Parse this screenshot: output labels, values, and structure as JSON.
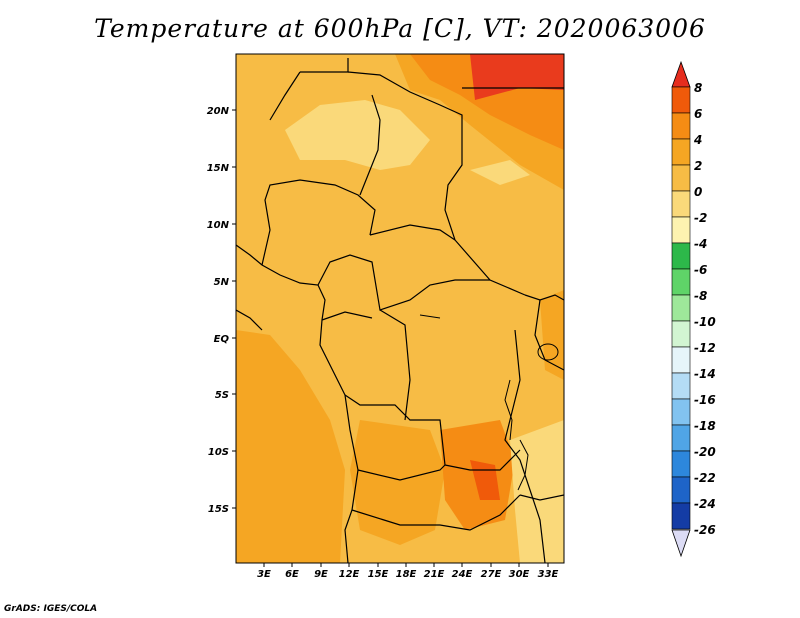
{
  "title": "Temperature at 600hPa [C], VT: 2020063006",
  "credit": "GrADS: IGES/COLA",
  "lat_labels": [
    "20N",
    "15N",
    "10N",
    "5N",
    "EQ",
    "5S",
    "10S",
    "15S"
  ],
  "lon_labels": [
    "3E",
    "6E",
    "9E",
    "12E",
    "15E",
    "18E",
    "21E",
    "24E",
    "27E",
    "30E",
    "33E"
  ],
  "colorbar": {
    "labels": [
      "8",
      "6",
      "4",
      "2",
      "0",
      "-2",
      "-4",
      "-6",
      "-8",
      "-10",
      "-12",
      "-14",
      "-16",
      "-18",
      "-20",
      "-22",
      "-24",
      "-26"
    ],
    "colors": [
      "#e62d1e",
      "#f05a0a",
      "#f58c14",
      "#f5a623",
      "#f7bc45",
      "#fad97a",
      "#fdf3b0",
      "#2db84a",
      "#5fd468",
      "#9ee89a",
      "#d2f5d2",
      "#e6f5fa",
      "#b4dcf5",
      "#82c3f0",
      "#50a5e6",
      "#2d87dc",
      "#1e64c8",
      "#143ca5",
      "#0a1e78",
      "#dcdcf5"
    ]
  },
  "chart_data": {
    "type": "heatmap",
    "variable": "Temperature at 600hPa",
    "units": "C",
    "valid_time": "2020063006",
    "lon_range": [
      0,
      34.5
    ],
    "lat_range": [
      -20,
      24.5
    ],
    "value_range": [
      -26,
      8
    ]
  }
}
